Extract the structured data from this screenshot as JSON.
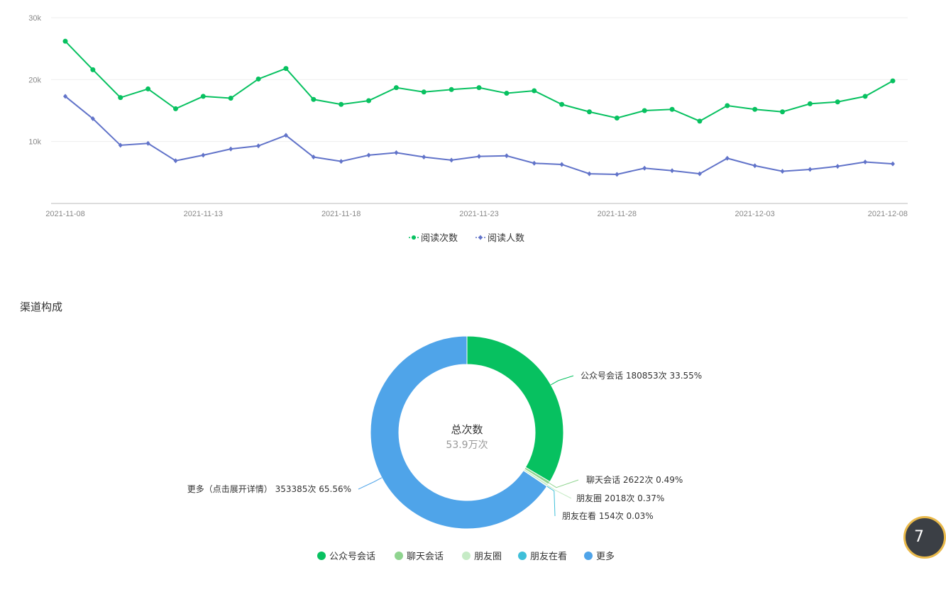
{
  "chart_data": [
    {
      "type": "line",
      "x": [
        "2021-11-08",
        "2021-11-09",
        "2021-11-10",
        "2021-11-11",
        "2021-11-12",
        "2021-11-13",
        "2021-11-14",
        "2021-11-15",
        "2021-11-16",
        "2021-11-17",
        "2021-11-18",
        "2021-11-19",
        "2021-11-20",
        "2021-11-21",
        "2021-11-22",
        "2021-11-23",
        "2021-11-24",
        "2021-11-25",
        "2021-11-26",
        "2021-11-27",
        "2021-11-28",
        "2021-11-29",
        "2021-11-30",
        "2021-12-01",
        "2021-12-02",
        "2021-12-03",
        "2021-12-04",
        "2021-12-05",
        "2021-12-06",
        "2021-12-07",
        "2021-12-08"
      ],
      "x_tick_labels": [
        "2021-11-08",
        "2021-11-13",
        "2021-11-18",
        "2021-11-23",
        "2021-11-28",
        "2021-12-03",
        "2021-12-08"
      ],
      "y_tick_labels": [
        "10k",
        "20k",
        "30k"
      ],
      "ylim": [
        0,
        30000
      ],
      "grid": true,
      "legend_position": "bottom",
      "series": [
        {
          "name": "阅读次数",
          "color": "#07c160",
          "marker": "circle",
          "values": [
            26200,
            21600,
            17100,
            18500,
            15300,
            17300,
            17000,
            20100,
            21800,
            16800,
            16000,
            16600,
            18700,
            18000,
            18400,
            18700,
            17800,
            18200,
            16000,
            14800,
            13800,
            15000,
            15200,
            13300,
            15800,
            15200,
            14800,
            16100,
            16400,
            17300,
            19800
          ]
        },
        {
          "name": "阅读人数",
          "color": "#6173c9",
          "marker": "diamond",
          "values": [
            17300,
            13700,
            9400,
            9700,
            6900,
            7800,
            8800,
            9300,
            11000,
            7500,
            6800,
            7800,
            8200,
            7500,
            7000,
            7600,
            7700,
            6500,
            6300,
            4800,
            4700,
            5700,
            5300,
            4800,
            7300,
            6100,
            5200,
            5500,
            6000,
            6700,
            6400
          ]
        }
      ]
    },
    {
      "type": "pie",
      "title": "渠道构成",
      "center_label": "总次数",
      "center_value": "53.9万次",
      "legend_position": "bottom",
      "slices": [
        {
          "name": "公众号会话",
          "value": 180853,
          "percent": 33.55,
          "color": "#07c160",
          "label": "公众号会话 180853次 33.55%"
        },
        {
          "name": "聊天会话",
          "value": 2622,
          "percent": 0.49,
          "color": "#8fd48f",
          "label": "聊天会话 2622次 0.49%"
        },
        {
          "name": "朋友圈",
          "value": 2018,
          "percent": 0.37,
          "color": "#c6ebc6",
          "label": "朋友圈 2018次 0.37%"
        },
        {
          "name": "朋友在看",
          "value": 154,
          "percent": 0.03,
          "color": "#3fbfd9",
          "label": "朋友在看 154次 0.03%"
        },
        {
          "name": "更多",
          "value": 353385,
          "percent": 65.56,
          "color": "#4fa4e9",
          "label": "更多（点击展开详情） 353385次 65.56%"
        }
      ]
    }
  ],
  "floating_button": {
    "label": "7"
  }
}
